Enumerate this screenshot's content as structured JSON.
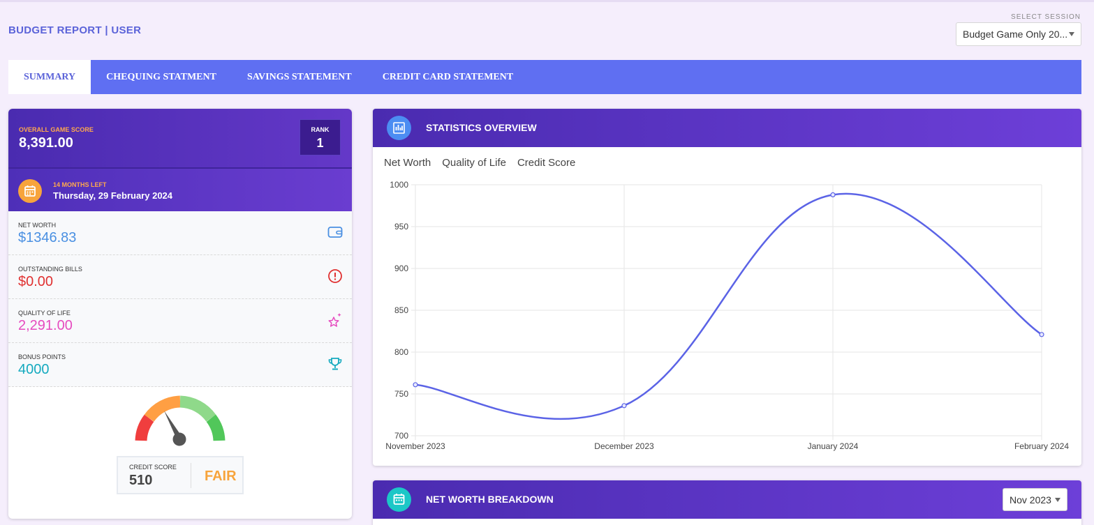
{
  "header": {
    "title": "BUDGET REPORT | USER"
  },
  "session": {
    "label": "SELECT SESSION",
    "selected": "Budget Game Only 20..."
  },
  "tabs": [
    {
      "label": "SUMMARY"
    },
    {
      "label": "CHEQUING STATMENT"
    },
    {
      "label": "SAVINGS STATEMENT"
    },
    {
      "label": "CREDIT CARD STATEMENT"
    }
  ],
  "summary": {
    "score_label": "OVERALL GAME SCORE",
    "score_value": "8,391.00",
    "rank_label": "RANK",
    "rank_value": "1",
    "months_left": "14 MONTHS LEFT",
    "date": "Thursday, 29 February 2024",
    "stats": [
      {
        "label": "NET WORTH",
        "value": "$1346.83",
        "color": "#4a90e2",
        "icon": "wallet-icon"
      },
      {
        "label": "OUTSTANDING BILLS",
        "value": "$0.00",
        "color": "#e03131",
        "icon": "alert-circle-icon"
      },
      {
        "label": "QUALITY OF LIFE",
        "value": "2,291.00",
        "color": "#e64bbf",
        "icon": "sparkle-star-icon"
      },
      {
        "label": "BONUS POINTS",
        "value": "4000",
        "color": "#15aabf",
        "icon": "trophy-icon"
      }
    ],
    "credit_score_label": "CREDIT SCORE",
    "credit_score_value": "510",
    "credit_rating": "FAIR"
  },
  "statistics": {
    "title": "STATISTICS OVERVIEW",
    "chart_tabs": [
      "Net Worth",
      "Quality of Life",
      "Credit Score"
    ]
  },
  "chart_data": {
    "type": "line",
    "title": "",
    "xlabel": "",
    "ylabel": "",
    "categories": [
      "November 2023",
      "December 2023",
      "January 2024",
      "February 2024"
    ],
    "series": [
      {
        "values": [
          761,
          736,
          988,
          821
        ]
      }
    ],
    "ylim": [
      700,
      1000
    ],
    "yticks": [
      700,
      750,
      800,
      850,
      900,
      950,
      1000
    ],
    "grid": true,
    "line_color": "#5b63e6"
  },
  "net_worth_breakdown": {
    "title": "NET WORTH BREAKDOWN",
    "month_selected": "Nov 2023"
  }
}
